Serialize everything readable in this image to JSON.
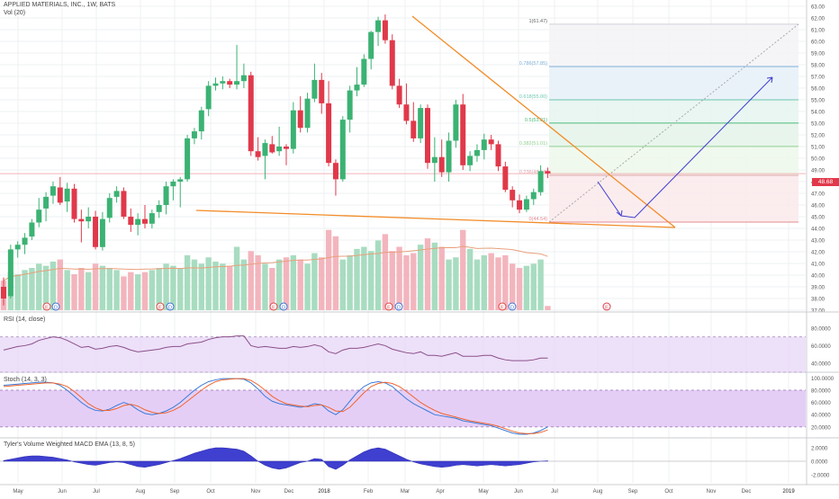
{
  "header": {
    "symbol_line": "APPLIED MATERIALS, INC., 1W, BATS",
    "vol_label": "Vol (20)"
  },
  "colors": {
    "up": "#3bb273",
    "down": "#e0394a",
    "vol_up": "#a8dcc0",
    "vol_down": "#f3b5bd",
    "trendline": "#f28c28",
    "projection": "#3f3fcf",
    "rsi_band": "#e8d8f7",
    "stoch_band": "#e1c6f5",
    "macd_fill": "#3f3fd0",
    "last_price": "#e0394a"
  },
  "last_price_label": "48.68",
  "chart_data": [
    {
      "type": "candlestick",
      "title": "APPLIED MATERIALS, INC., 1W, BATS",
      "yaxis_ticks": [
        "63.00",
        "62.00",
        "61.00",
        "60.00",
        "59.00",
        "58.00",
        "57.00",
        "56.00",
        "55.00",
        "54.00",
        "53.00",
        "52.00",
        "51.00",
        "50.00",
        "49.00",
        "48.00",
        "47.00",
        "46.00",
        "45.00",
        "44.00",
        "43.00",
        "42.00",
        "41.00",
        "40.00",
        "39.00",
        "38.00",
        "37.00"
      ],
      "ylim": [
        36.7,
        63.3
      ],
      "xaxis_ticks": [
        "May",
        "Jun",
        "Jul",
        "Aug",
        "Sep",
        "Oct",
        "Nov",
        "Dec",
        "2018",
        "Feb",
        "Mar",
        "Apr",
        "May",
        "Jun",
        "Jul",
        "Aug",
        "Sep",
        "Oct",
        "Nov",
        "Dec",
        "2019"
      ],
      "candles": [
        {
          "o": 39.0,
          "h": 39.8,
          "l": 37.4,
          "c": 38.0
        },
        {
          "o": 38.2,
          "h": 42.6,
          "l": 38.0,
          "c": 42.2
        },
        {
          "o": 42.2,
          "h": 42.9,
          "l": 41.5,
          "c": 42.6
        },
        {
          "o": 42.6,
          "h": 43.6,
          "l": 41.8,
          "c": 43.2
        },
        {
          "o": 43.3,
          "h": 44.8,
          "l": 43.0,
          "c": 44.5
        },
        {
          "o": 44.5,
          "h": 46.6,
          "l": 44.1,
          "c": 45.6
        },
        {
          "o": 45.7,
          "h": 47.1,
          "l": 44.6,
          "c": 46.7
        },
        {
          "o": 46.8,
          "h": 48.0,
          "l": 46.1,
          "c": 47.6
        },
        {
          "o": 47.5,
          "h": 48.4,
          "l": 46.0,
          "c": 46.2
        },
        {
          "o": 46.3,
          "h": 47.9,
          "l": 45.4,
          "c": 47.4
        },
        {
          "o": 47.4,
          "h": 47.8,
          "l": 44.5,
          "c": 44.8
        },
        {
          "o": 44.8,
          "h": 45.6,
          "l": 42.8,
          "c": 44.6
        },
        {
          "o": 44.6,
          "h": 45.8,
          "l": 44.0,
          "c": 45.0
        },
        {
          "o": 45.0,
          "h": 45.5,
          "l": 42.2,
          "c": 42.4
        },
        {
          "o": 42.4,
          "h": 45.4,
          "l": 42.1,
          "c": 44.8
        },
        {
          "o": 44.9,
          "h": 47.0,
          "l": 44.5,
          "c": 46.6
        },
        {
          "o": 46.7,
          "h": 47.6,
          "l": 46.2,
          "c": 47.2
        },
        {
          "o": 47.2,
          "h": 47.5,
          "l": 44.8,
          "c": 45.0
        },
        {
          "o": 45.0,
          "h": 45.7,
          "l": 43.7,
          "c": 44.3
        },
        {
          "o": 44.3,
          "h": 45.3,
          "l": 43.4,
          "c": 44.8
        },
        {
          "o": 44.8,
          "h": 46.0,
          "l": 44.0,
          "c": 44.4
        },
        {
          "o": 44.4,
          "h": 45.6,
          "l": 44.0,
          "c": 45.3
        },
        {
          "o": 45.4,
          "h": 46.4,
          "l": 44.9,
          "c": 46.0
        },
        {
          "o": 46.0,
          "h": 48.0,
          "l": 45.2,
          "c": 47.6
        },
        {
          "o": 47.6,
          "h": 48.2,
          "l": 46.4,
          "c": 48.0
        },
        {
          "o": 48.0,
          "h": 48.4,
          "l": 45.8,
          "c": 48.2
        },
        {
          "o": 48.2,
          "h": 52.0,
          "l": 48.0,
          "c": 51.7
        },
        {
          "o": 51.7,
          "h": 52.6,
          "l": 51.2,
          "c": 52.3
        },
        {
          "o": 52.3,
          "h": 54.4,
          "l": 51.6,
          "c": 54.1
        },
        {
          "o": 54.2,
          "h": 56.6,
          "l": 53.6,
          "c": 56.2
        },
        {
          "o": 56.2,
          "h": 56.9,
          "l": 55.8,
          "c": 56.4
        },
        {
          "o": 56.4,
          "h": 57.0,
          "l": 55.9,
          "c": 56.6
        },
        {
          "o": 56.6,
          "h": 56.8,
          "l": 56.0,
          "c": 56.3
        },
        {
          "o": 56.3,
          "h": 59.7,
          "l": 55.9,
          "c": 56.6
        },
        {
          "o": 56.6,
          "h": 58.1,
          "l": 56.0,
          "c": 57.1
        },
        {
          "o": 57.1,
          "h": 57.4,
          "l": 50.2,
          "c": 50.6
        },
        {
          "o": 50.6,
          "h": 51.8,
          "l": 49.8,
          "c": 50.1
        },
        {
          "o": 50.2,
          "h": 51.6,
          "l": 48.2,
          "c": 51.3
        },
        {
          "o": 51.2,
          "h": 51.9,
          "l": 50.4,
          "c": 50.5
        },
        {
          "o": 50.6,
          "h": 52.7,
          "l": 50.2,
          "c": 51.0
        },
        {
          "o": 51.0,
          "h": 51.2,
          "l": 49.4,
          "c": 50.8
        },
        {
          "o": 50.8,
          "h": 54.8,
          "l": 50.4,
          "c": 54.1
        },
        {
          "o": 54.1,
          "h": 55.3,
          "l": 52.2,
          "c": 52.6
        },
        {
          "o": 52.6,
          "h": 55.6,
          "l": 52.2,
          "c": 55.1
        },
        {
          "o": 55.1,
          "h": 58.1,
          "l": 54.8,
          "c": 56.7
        },
        {
          "o": 56.7,
          "h": 57.3,
          "l": 53.8,
          "c": 54.7
        },
        {
          "o": 54.7,
          "h": 56.6,
          "l": 49.3,
          "c": 49.6
        },
        {
          "o": 49.6,
          "h": 49.9,
          "l": 46.8,
          "c": 48.2
        },
        {
          "o": 48.2,
          "h": 53.6,
          "l": 48.0,
          "c": 53.3
        },
        {
          "o": 53.3,
          "h": 56.2,
          "l": 52.2,
          "c": 55.8
        },
        {
          "o": 55.8,
          "h": 57.8,
          "l": 55.3,
          "c": 56.3
        },
        {
          "o": 56.3,
          "h": 58.9,
          "l": 56.1,
          "c": 58.5
        },
        {
          "o": 58.5,
          "h": 60.9,
          "l": 57.6,
          "c": 60.8
        },
        {
          "o": 60.8,
          "h": 62.1,
          "l": 59.6,
          "c": 61.8
        },
        {
          "o": 61.8,
          "h": 62.3,
          "l": 59.8,
          "c": 60.1
        },
        {
          "o": 60.1,
          "h": 60.6,
          "l": 55.9,
          "c": 56.2
        },
        {
          "o": 56.2,
          "h": 56.8,
          "l": 54.3,
          "c": 54.6
        },
        {
          "o": 54.6,
          "h": 56.4,
          "l": 52.9,
          "c": 53.2
        },
        {
          "o": 53.2,
          "h": 54.8,
          "l": 51.4,
          "c": 51.7
        },
        {
          "o": 51.7,
          "h": 54.6,
          "l": 51.3,
          "c": 54.3
        },
        {
          "o": 54.3,
          "h": 54.6,
          "l": 49.1,
          "c": 49.6
        },
        {
          "o": 49.6,
          "h": 51.8,
          "l": 48.0,
          "c": 50.1
        },
        {
          "o": 50.1,
          "h": 51.6,
          "l": 48.4,
          "c": 48.8
        },
        {
          "o": 48.8,
          "h": 52.2,
          "l": 48.0,
          "c": 51.5
        },
        {
          "o": 51.5,
          "h": 55.0,
          "l": 50.9,
          "c": 54.6
        },
        {
          "o": 54.6,
          "h": 55.5,
          "l": 49.0,
          "c": 49.4
        },
        {
          "o": 49.4,
          "h": 50.6,
          "l": 48.9,
          "c": 50.2
        },
        {
          "o": 50.2,
          "h": 51.2,
          "l": 49.7,
          "c": 50.7
        },
        {
          "o": 50.7,
          "h": 52.1,
          "l": 49.9,
          "c": 51.6
        },
        {
          "o": 51.6,
          "h": 52.0,
          "l": 50.7,
          "c": 51.2
        },
        {
          "o": 51.2,
          "h": 51.5,
          "l": 48.9,
          "c": 49.3
        },
        {
          "o": 49.3,
          "h": 49.7,
          "l": 47.1,
          "c": 47.3
        },
        {
          "o": 47.3,
          "h": 47.6,
          "l": 45.8,
          "c": 46.4
        },
        {
          "o": 46.4,
          "h": 46.9,
          "l": 45.3,
          "c": 45.6
        },
        {
          "o": 45.6,
          "h": 46.8,
          "l": 45.4,
          "c": 46.5
        },
        {
          "o": 46.5,
          "h": 47.4,
          "l": 46.0,
          "c": 47.1
        },
        {
          "o": 47.1,
          "h": 49.4,
          "l": 46.8,
          "c": 48.9
        },
        {
          "o": 48.9,
          "h": 49.2,
          "l": 48.3,
          "c": 48.7
        }
      ],
      "fibonacci": [
        {
          "label": "1(61.47)",
          "value": 61.47
        },
        {
          "label": "0.786(57.85)",
          "value": 57.85
        },
        {
          "label": "0.618(55.00)",
          "value": 55.0
        },
        {
          "label": "0.5(53.01)",
          "value": 53.01
        },
        {
          "label": "0.382(51.01)",
          "value": 51.01
        },
        {
          "label": "0.236(48.54)",
          "value": 48.54
        },
        {
          "label": "0(44.54)",
          "value": 44.54
        }
      ],
      "volume_bars": [
        14,
        18,
        17,
        19,
        20,
        22,
        21,
        23,
        24,
        19,
        17,
        20,
        18,
        22,
        21,
        20,
        19,
        16,
        18,
        17,
        18,
        19,
        20,
        22,
        21,
        20,
        26,
        24,
        22,
        25,
        23,
        22,
        21,
        30,
        24,
        28,
        26,
        22,
        20,
        24,
        25,
        26,
        24,
        22,
        27,
        25,
        38,
        35,
        24,
        26,
        29,
        30,
        28,
        33,
        36,
        28,
        30,
        26,
        27,
        31,
        34,
        32,
        30,
        24,
        25,
        38,
        29,
        24,
        26,
        27,
        25,
        26,
        22,
        20,
        21,
        22,
        24,
        2
      ],
      "event_markers": [
        "E",
        "D",
        "E",
        "D",
        "E",
        "D",
        "E",
        "D",
        "E",
        "D",
        "E"
      ]
    },
    {
      "type": "line",
      "title": "RSI (14, close)",
      "yaxis_ticks": [
        "80.0000",
        "60.0000",
        "40.0000"
      ],
      "ylim": [
        32,
        95
      ],
      "band": [
        30,
        70
      ],
      "values": [
        55,
        57,
        59,
        60,
        62,
        66,
        68,
        70,
        69,
        66,
        62,
        58,
        59,
        56,
        57,
        59,
        60,
        58,
        55,
        53,
        54,
        55,
        56,
        58,
        59,
        59,
        62,
        63,
        64,
        67,
        69,
        70,
        70,
        71,
        71,
        60,
        58,
        59,
        58,
        57,
        57,
        59,
        58,
        59,
        61,
        59,
        53,
        51,
        55,
        57,
        57,
        58,
        60,
        62,
        60,
        56,
        54,
        52,
        51,
        53,
        49,
        49,
        48,
        50,
        52,
        48,
        48,
        48,
        49,
        49,
        46,
        44,
        43,
        43,
        43,
        44,
        46,
        46
      ]
    },
    {
      "type": "line",
      "title": "Stoch (14, 3, 3)",
      "yaxis_ticks": [
        "100.0000",
        "80.0000",
        "60.0000",
        "40.0000",
        "20.0000"
      ],
      "ylim": [
        5,
        105
      ],
      "band": [
        20,
        80
      ],
      "series": [
        {
          "values": [
            88,
            89,
            90,
            91,
            92,
            93,
            93,
            92,
            88,
            80,
            70,
            60,
            52,
            47,
            46,
            49,
            55,
            60,
            56,
            48,
            42,
            40,
            42,
            46,
            52,
            60,
            70,
            80,
            88,
            94,
            97,
            99,
            99,
            99,
            98,
            92,
            82,
            70,
            62,
            58,
            56,
            54,
            52,
            54,
            58,
            56,
            46,
            40,
            48,
            62,
            76,
            86,
            92,
            94,
            92,
            86,
            76,
            66,
            58,
            52,
            46,
            40,
            38,
            36,
            34,
            30,
            28,
            26,
            24,
            22,
            18,
            14,
            10,
            8,
            8,
            10,
            14,
            20
          ]
        },
        {
          "values": [
            86,
            87,
            88,
            89,
            90,
            91,
            92,
            92,
            90,
            86,
            78,
            68,
            58,
            51,
            47,
            47,
            50,
            55,
            57,
            54,
            48,
            44,
            42,
            43,
            47,
            53,
            62,
            71,
            80,
            88,
            94,
            97,
            98,
            99,
            99,
            96,
            89,
            80,
            70,
            63,
            58,
            56,
            54,
            53,
            55,
            56,
            52,
            46,
            45,
            52,
            64,
            76,
            86,
            91,
            93,
            91,
            86,
            78,
            69,
            60,
            53,
            47,
            42,
            39,
            36,
            33,
            30,
            28,
            26,
            24,
            21,
            17,
            13,
            10,
            9,
            9,
            11,
            15
          ]
        }
      ]
    },
    {
      "type": "area",
      "title": "Tyler's Volume Weighted MACD EMA (13, 8, 5)",
      "yaxis_ticks": [
        "2.0000",
        "0.0000",
        "-2.0000"
      ],
      "ylim": [
        -3.2,
        3.2
      ],
      "values": [
        0.1,
        0.3,
        0.5,
        0.7,
        0.8,
        0.8,
        0.7,
        0.6,
        0.4,
        0.2,
        -0.1,
        -0.3,
        -0.5,
        -0.6,
        -0.4,
        -0.2,
        -0.1,
        -0.2,
        -0.5,
        -0.8,
        -0.9,
        -0.7,
        -0.5,
        -0.2,
        0.1,
        0.4,
        0.8,
        1.2,
        1.5,
        1.8,
        2.0,
        2.0,
        1.9,
        1.8,
        1.5,
        0.8,
        0.0,
        -0.6,
        -1.0,
        -1.2,
        -1.0,
        -0.6,
        -0.2,
        0.0,
        0.4,
        0.3,
        -0.8,
        -1.2,
        -0.6,
        0.2,
        0.8,
        1.4,
        1.8,
        2.0,
        1.8,
        1.3,
        0.8,
        0.3,
        -0.1,
        -0.4,
        -0.6,
        -0.8,
        -0.9,
        -0.8,
        -0.6,
        -0.5,
        -0.6,
        -0.7,
        -0.6,
        -0.5,
        -0.6,
        -0.7,
        -0.6,
        -0.5,
        -0.3,
        -0.1,
        0.0,
        0.05
      ]
    }
  ]
}
